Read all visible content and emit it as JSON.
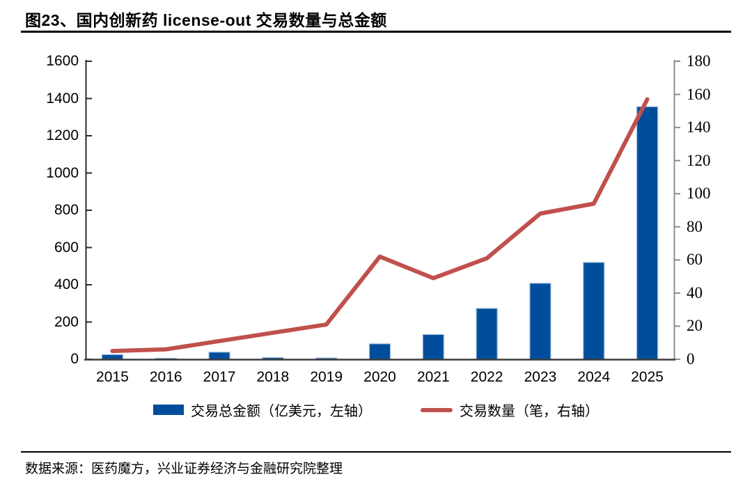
{
  "title": "图23、国内创新药 license-out 交易数量与总金额",
  "source": "数据来源：医药魔方，兴业证券经济与金融研究院整理",
  "legend": [
    {
      "label": "交易总金额（亿美元，左轴）",
      "type": "bar",
      "color": "#004E9B"
    },
    {
      "label": "交易数量（笔，右轴）",
      "type": "line",
      "color": "#C0504D"
    }
  ],
  "colors": {
    "bar_fill": "#004E9B",
    "bar_border": "#9CB8DA",
    "line_stroke": "#C0504D",
    "left_axis_spine": "#2b2b2b",
    "right_axis_spine": "#8c8c8c",
    "baseline": "#3a3a3a"
  },
  "chart_data": {
    "type": "combo",
    "categories": [
      "2015",
      "2016",
      "2017",
      "2018",
      "2019",
      "2020",
      "2021",
      "2022",
      "2023",
      "2024",
      "2025"
    ],
    "series": [
      {
        "name": "交易总金额（亿美元，左轴）",
        "type": "bar",
        "axis": "left",
        "color": "#004E9B",
        "values": [
          25,
          4,
          38,
          9,
          7,
          83,
          133,
          273,
          408,
          520,
          1356
        ]
      },
      {
        "name": "交易数量（笔，右轴）",
        "type": "line",
        "axis": "right",
        "color": "#C0504D",
        "values": [
          5,
          6,
          11,
          16,
          21,
          62,
          49,
          61,
          88,
          94,
          157
        ]
      }
    ],
    "left_axis": {
      "min": 0,
      "max": 1600,
      "step": 200,
      "label": ""
    },
    "right_axis": {
      "min": 0,
      "max": 180,
      "step": 20,
      "label": ""
    },
    "xlabel": "",
    "ylabel": "",
    "grid": false,
    "legend_position": "bottom"
  }
}
